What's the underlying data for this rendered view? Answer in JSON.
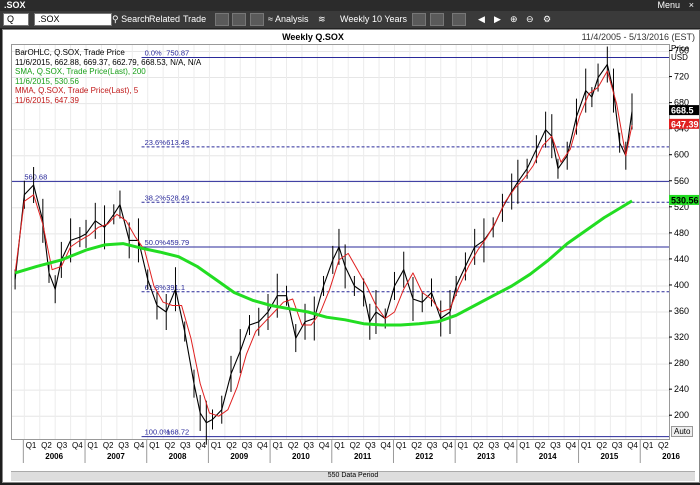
{
  "window": {
    "title": ".SOX",
    "menu_label": "Menu",
    "close_glyph": "×"
  },
  "toolbar": {
    "symbol_value": "Q",
    "symbol_input": ".SOX",
    "search_label": "Search",
    "related_label": "Related",
    "trade_label": "Trade",
    "analysis_label": "Analysis",
    "period_label": "Weekly",
    "range_label": "10 Years"
  },
  "chart": {
    "title": "Weekly Q.SOX",
    "date_range": "11/4/2005 - 5/13/2016 (EST)",
    "price_label": "Price",
    "currency_label": "USD",
    "auto_label": "Auto",
    "period_bar_label": "550 Data Period"
  },
  "legend": {
    "line1": "BarOHLC, Q.SOX, Trade Price",
    "line2": "11/6/2015, 662.88, 669.37, 662.79, 668.53, N/A, N/A",
    "line3": "SMA, Q.SOX, Trade Price(Last), 200",
    "line4": "11/6/2015, 530.56",
    "line5": "MMA, Q.SOX, Trade Price(Last), 5",
    "line6": "11/6/2015, 647.39"
  },
  "chart_data": {
    "type": "line",
    "y_axis": {
      "ylim": [
        165,
        770
      ],
      "ticks": [
        200,
        240,
        280,
        320,
        360,
        400,
        440,
        480,
        520,
        560,
        600,
        640,
        680,
        720,
        760
      ]
    },
    "x_axis": {
      "quarter_labels": [
        "Q1",
        "Q2",
        "Q3",
        "Q4",
        "Q1",
        "Q2",
        "Q3",
        "Q4",
        "Q1",
        "Q2",
        "Q3",
        "Q4",
        "Q1",
        "Q2",
        "Q3",
        "Q4",
        "Q1",
        "Q2",
        "Q3",
        "Q4",
        "Q1",
        "Q2",
        "Q3",
        "Q4",
        "Q1",
        "Q2",
        "Q3",
        "Q4",
        "Q1",
        "Q2",
        "Q3",
        "Q4",
        "Q1",
        "Q2",
        "Q3",
        "Q4",
        "Q1",
        "Q2",
        "Q3",
        "Q4",
        "Q1",
        "Q2"
      ],
      "year_labels": [
        "2006",
        "2007",
        "2008",
        "2009",
        "2010",
        "2011",
        "2012",
        "2013",
        "2014",
        "2015",
        "2016"
      ]
    },
    "fib_levels": [
      {
        "label": "0.0%",
        "value": 750.87
      },
      {
        "label": "23.6%",
        "value": 613.48
      },
      {
        "label": "38.2%",
        "value": 528.49
      },
      {
        "label": "50.0%",
        "value": 459.79
      },
      {
        "label": "61.8%",
        "value": 391.1
      },
      {
        "label": "100.0%",
        "value": 168.72
      }
    ],
    "horizontal_line": {
      "label": "560.68",
      "value": 560.68
    },
    "last_price_tags": [
      {
        "value": 668.5,
        "color": "#000000",
        "text": "668.5"
      },
      {
        "value": 647.39,
        "color": "#e02020",
        "text": "647.39"
      },
      {
        "value": 530.56,
        "color": "#22dd22",
        "text": "530.56"
      }
    ],
    "series": [
      {
        "name": "BarOHLC",
        "color": "#000000",
        "x": [
          2005.85,
          2006.0,
          2006.15,
          2006.3,
          2006.4,
          2006.5,
          2006.6,
          2006.75,
          2006.9,
          2007.0,
          2007.15,
          2007.3,
          2007.45,
          2007.55,
          2007.7,
          2007.85,
          2008.0,
          2008.15,
          2008.3,
          2008.45,
          2008.6,
          2008.75,
          2008.85,
          2008.95,
          2009.05,
          2009.2,
          2009.35,
          2009.5,
          2009.65,
          2009.8,
          2009.95,
          2010.1,
          2010.25,
          2010.4,
          2010.55,
          2010.7,
          2010.85,
          2011.0,
          2011.1,
          2011.2,
          2011.35,
          2011.5,
          2011.6,
          2011.7,
          2011.85,
          2012.0,
          2012.15,
          2012.3,
          2012.45,
          2012.6,
          2012.75,
          2012.9,
          2013.0,
          2013.15,
          2013.3,
          2013.45,
          2013.6,
          2013.75,
          2013.9,
          2014.0,
          2014.15,
          2014.3,
          2014.45,
          2014.55,
          2014.65,
          2014.8,
          2014.95,
          2015.1,
          2015.2,
          2015.3,
          2015.45,
          2015.55,
          2015.65,
          2015.75,
          2015.85
        ],
        "y": [
          410,
          540,
          555,
          500,
          420,
          395,
          440,
          470,
          475,
          480,
          500,
          490,
          510,
          525,
          470,
          470,
          410,
          370,
          360,
          395,
          330,
          250,
          205,
          190,
          195,
          210,
          265,
          300,
          340,
          345,
          360,
          385,
          385,
          320,
          345,
          350,
          400,
          440,
          460,
          430,
          400,
          390,
          345,
          360,
          350,
          400,
          425,
          380,
          375,
          390,
          350,
          360,
          400,
          430,
          460,
          470,
          490,
          520,
          545,
          560,
          580,
          610,
          640,
          630,
          580,
          600,
          660,
          700,
          690,
          720,
          740,
          700,
          620,
          600,
          668
        ]
      },
      {
        "name": "MMA 5",
        "color": "#e02020",
        "x": [
          2005.85,
          2006.0,
          2006.15,
          2006.3,
          2006.45,
          2006.6,
          2006.75,
          2006.9,
          2007.05,
          2007.2,
          2007.35,
          2007.5,
          2007.65,
          2007.8,
          2007.95,
          2008.1,
          2008.25,
          2008.4,
          2008.55,
          2008.7,
          2008.85,
          2009.0,
          2009.15,
          2009.3,
          2009.45,
          2009.6,
          2009.75,
          2009.9,
          2010.05,
          2010.2,
          2010.35,
          2010.5,
          2010.65,
          2010.8,
          2010.95,
          2011.1,
          2011.25,
          2011.4,
          2011.55,
          2011.7,
          2011.85,
          2012.0,
          2012.15,
          2012.3,
          2012.45,
          2012.6,
          2012.75,
          2012.9,
          2013.05,
          2013.2,
          2013.35,
          2013.5,
          2013.65,
          2013.8,
          2013.95,
          2014.1,
          2014.25,
          2014.4,
          2014.55,
          2014.7,
          2014.85,
          2015.0,
          2015.15,
          2015.3,
          2015.45,
          2015.6,
          2015.75,
          2015.85
        ],
        "y": [
          420,
          530,
          540,
          495,
          425,
          430,
          460,
          470,
          478,
          490,
          495,
          510,
          500,
          475,
          455,
          400,
          375,
          370,
          370,
          320,
          250,
          205,
          200,
          210,
          245,
          295,
          330,
          345,
          360,
          375,
          380,
          340,
          340,
          360,
          395,
          440,
          450,
          425,
          400,
          370,
          350,
          360,
          395,
          420,
          390,
          380,
          360,
          365,
          400,
          430,
          455,
          475,
          500,
          530,
          550,
          565,
          585,
          615,
          630,
          590,
          610,
          660,
          695,
          705,
          730,
          680,
          600,
          647
        ]
      },
      {
        "name": "SMA 200",
        "color": "#22dd22",
        "x": [
          2005.85,
          2006.2,
          2006.6,
          2007.0,
          2007.3,
          2007.6,
          2007.9,
          2008.2,
          2008.5,
          2008.8,
          2009.1,
          2009.4,
          2009.7,
          2010.0,
          2010.3,
          2010.6,
          2010.9,
          2011.2,
          2011.5,
          2011.8,
          2012.1,
          2012.4,
          2012.7,
          2013.0,
          2013.3,
          2013.6,
          2013.9,
          2014.2,
          2014.5,
          2014.8,
          2015.1,
          2015.4,
          2015.7,
          2015.85
        ],
        "y": [
          420,
          430,
          440,
          455,
          463,
          465,
          458,
          452,
          445,
          430,
          410,
          390,
          378,
          370,
          365,
          360,
          352,
          348,
          342,
          340,
          340,
          342,
          345,
          355,
          370,
          385,
          400,
          418,
          440,
          465,
          485,
          505,
          522,
          530.56
        ]
      }
    ]
  }
}
